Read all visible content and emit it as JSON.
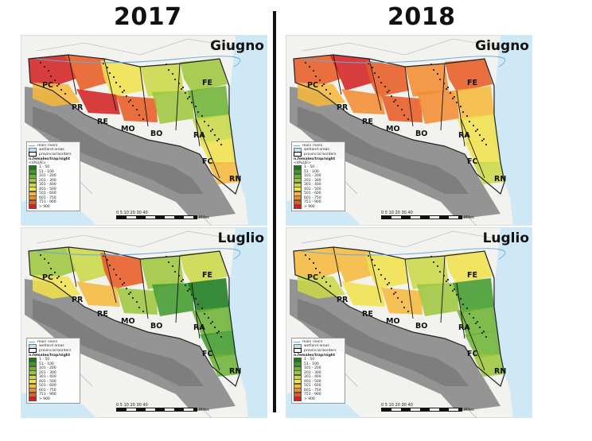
{
  "years": [
    "2017",
    "2018"
  ],
  "months": {
    "june": "Giugno",
    "july": "Luglio"
  },
  "provinces": [
    "PC",
    "PR",
    "RE",
    "MO",
    "BO",
    "FE",
    "RA",
    "FC",
    "RN"
  ],
  "legend": {
    "rivers": "main rivers",
    "wetland": "wetland areas",
    "borders": "provincial borders",
    "title": "n.females/trap/night",
    "value_label": "<VALUE>",
    "classes": [
      "1 - 50",
      "51 - 100",
      "101 - 200",
      "201 - 300",
      "301 - 400",
      "401 - 500",
      "501 - 600",
      "601 - 750",
      "751 - 900",
      "> 900"
    ],
    "colors": [
      "#1a7a1a",
      "#3f9a2a",
      "#6eb232",
      "#9cc63a",
      "#c9d845",
      "#f0e24a",
      "#f6b93b",
      "#f28a2e",
      "#e85a22",
      "#d42020"
    ]
  },
  "scale": {
    "ticks": "0  5  10     20     30     40",
    "unit": "Miles"
  },
  "colors": {
    "sea": "#cfe8f5",
    "land": "#f2f2ef",
    "mountains": "#8a8a8a",
    "divider": "#111111"
  }
}
